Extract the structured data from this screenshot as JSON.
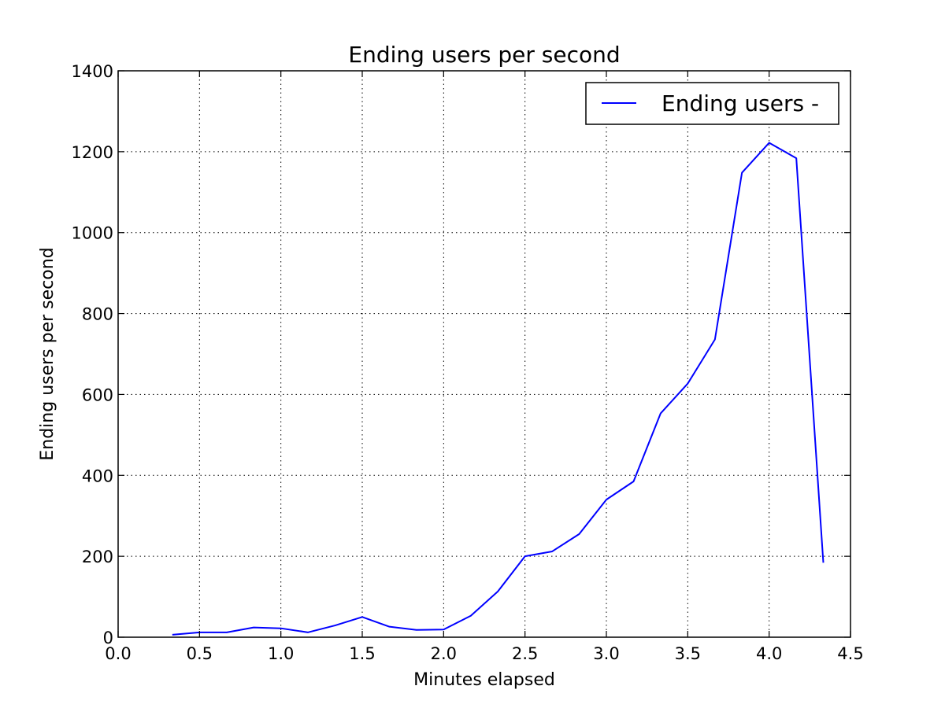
{
  "chart_data": {
    "type": "line",
    "title": "Ending users per second",
    "xlabel": "Minutes elapsed",
    "ylabel": "Ending users per second",
    "xlim": [
      0.0,
      4.5
    ],
    "ylim": [
      0,
      1400
    ],
    "xticks": [
      "0.0",
      "0.5",
      "1.0",
      "1.5",
      "2.0",
      "2.5",
      "3.0",
      "3.5",
      "4.0",
      "4.5"
    ],
    "yticks": [
      "0",
      "200",
      "400",
      "600",
      "800",
      "1000",
      "1200",
      "1400"
    ],
    "grid": true,
    "legend_position": "top-right",
    "series": [
      {
        "name": "Ending users -",
        "color": "#0000ff",
        "x": [
          0.333,
          0.5,
          0.667,
          0.833,
          1.0,
          1.167,
          1.333,
          1.5,
          1.667,
          1.833,
          2.0,
          2.167,
          2.333,
          2.5,
          2.667,
          2.833,
          3.0,
          3.167,
          3.333,
          3.5,
          3.667,
          3.833,
          4.0,
          4.167,
          4.333
        ],
        "y": [
          6,
          12,
          12,
          24,
          22,
          12,
          29,
          50,
          26,
          18,
          19,
          53,
          113,
          200,
          212,
          255,
          340,
          385,
          553,
          627,
          736,
          1148,
          1222,
          1184,
          184
        ]
      }
    ]
  }
}
